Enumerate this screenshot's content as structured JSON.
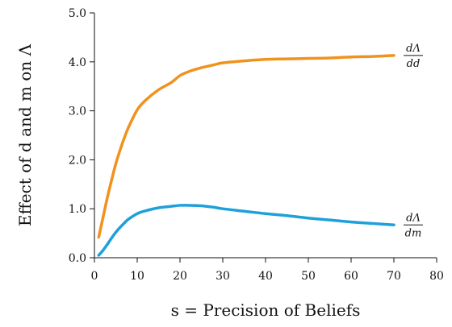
{
  "chart_data": {
    "type": "line",
    "title": "",
    "xlabel": "s = Precision of Beliefs",
    "ylabel": "Effect of d and m on Λ",
    "xlim": [
      0,
      80
    ],
    "ylim": [
      0,
      5
    ],
    "x_ticks": [
      "0",
      "10",
      "20",
      "30",
      "40",
      "50",
      "60",
      "70",
      "80"
    ],
    "y_ticks": [
      "0.0",
      "1.0",
      "2.0",
      "3.0",
      "4.0",
      "5.0"
    ],
    "grid": false,
    "legend": "none",
    "series": [
      {
        "name_numerator": "dΛ",
        "name_denominator": "dd",
        "color": "#F0921E",
        "x": [
          1,
          2,
          3,
          4,
          5,
          6,
          7,
          8,
          10,
          12,
          15,
          18,
          20,
          22,
          25,
          28,
          30,
          35,
          40,
          45,
          50,
          55,
          60,
          65,
          70
        ],
        "y": [
          0.42,
          0.82,
          1.22,
          1.58,
          1.92,
          2.2,
          2.45,
          2.67,
          3.02,
          3.22,
          3.43,
          3.58,
          3.72,
          3.8,
          3.88,
          3.94,
          3.98,
          4.02,
          4.05,
          4.06,
          4.07,
          4.08,
          4.1,
          4.11,
          4.13
        ]
      },
      {
        "name_numerator": "dΛ",
        "name_denominator": "dm",
        "color": "#1EA0DA",
        "x": [
          1,
          2,
          3,
          4,
          5,
          6,
          7,
          8,
          10,
          12,
          15,
          18,
          20,
          22,
          25,
          28,
          30,
          35,
          40,
          45,
          50,
          55,
          60,
          65,
          70
        ],
        "y": [
          0.05,
          0.15,
          0.27,
          0.4,
          0.52,
          0.62,
          0.71,
          0.79,
          0.9,
          0.96,
          1.02,
          1.05,
          1.07,
          1.07,
          1.06,
          1.03,
          1.0,
          0.95,
          0.9,
          0.86,
          0.81,
          0.77,
          0.73,
          0.7,
          0.67
        ]
      }
    ]
  }
}
